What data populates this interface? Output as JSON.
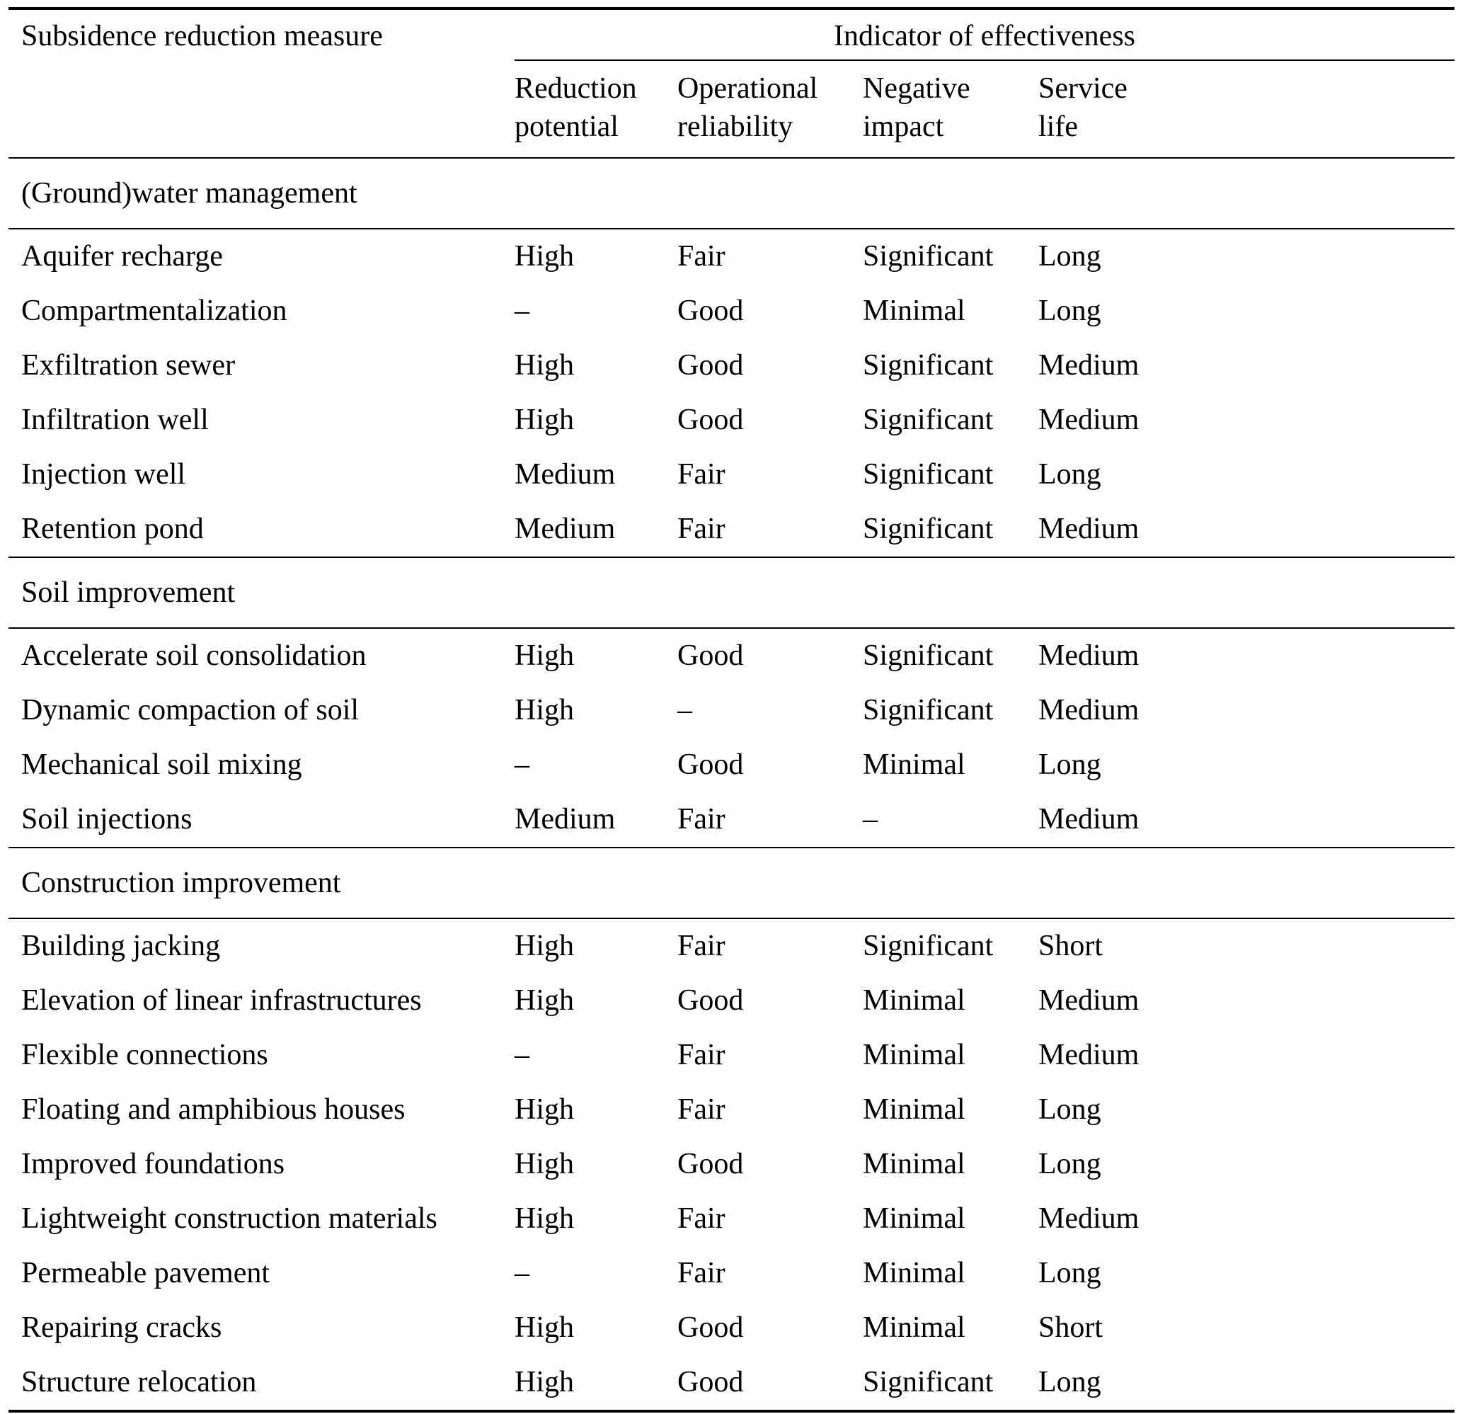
{
  "table": {
    "measure_header": "Subsidence reduction measure",
    "group_header": "Indicator of effectiveness",
    "columns": [
      "Reduction\npotential",
      "Operational\nreliability",
      "Negative\nimpact",
      "Service\nlife"
    ],
    "sections": [
      {
        "title": "(Ground)water management",
        "rows": [
          {
            "measure": "Aquifer recharge",
            "values": [
              "High",
              "Fair",
              "Significant",
              "Long"
            ]
          },
          {
            "measure": "Compartmentalization",
            "values": [
              "–",
              "Good",
              "Minimal",
              "Long"
            ]
          },
          {
            "measure": "Exfiltration sewer",
            "values": [
              "High",
              "Good",
              "Significant",
              "Medium"
            ]
          },
          {
            "measure": "Infiltration well",
            "values": [
              "High",
              "Good",
              "Significant",
              "Medium"
            ]
          },
          {
            "measure": "Injection well",
            "values": [
              "Medium",
              "Fair",
              "Significant",
              "Long"
            ]
          },
          {
            "measure": "Retention pond",
            "values": [
              "Medium",
              "Fair",
              "Significant",
              "Medium"
            ]
          }
        ]
      },
      {
        "title": "Soil improvement",
        "rows": [
          {
            "measure": "Accelerate soil consolidation",
            "values": [
              "High",
              "Good",
              "Significant",
              "Medium"
            ]
          },
          {
            "measure": "Dynamic compaction of soil",
            "values": [
              "High",
              "–",
              "Significant",
              "Medium"
            ]
          },
          {
            "measure": "Mechanical soil mixing",
            "values": [
              "–",
              "Good",
              "Minimal",
              "Long"
            ]
          },
          {
            "measure": "Soil injections",
            "values": [
              "Medium",
              "Fair",
              "–",
              "Medium"
            ]
          }
        ]
      },
      {
        "title": "Construction improvement",
        "rows": [
          {
            "measure": "Building jacking",
            "values": [
              "High",
              "Fair",
              "Significant",
              "Short"
            ]
          },
          {
            "measure": "Elevation of linear infrastructures",
            "values": [
              "High",
              "Good",
              "Minimal",
              "Medium"
            ]
          },
          {
            "measure": "Flexible connections",
            "values": [
              "–",
              "Fair",
              "Minimal",
              "Medium"
            ]
          },
          {
            "measure": "Floating and amphibious houses",
            "values": [
              "High",
              "Fair",
              "Minimal",
              "Long"
            ]
          },
          {
            "measure": "Improved foundations",
            "values": [
              "High",
              "Good",
              "Minimal",
              "Long"
            ]
          },
          {
            "measure": "Lightweight construction materials",
            "values": [
              "High",
              "Fair",
              "Minimal",
              "Medium"
            ]
          },
          {
            "measure": "Permeable pavement",
            "values": [
              "–",
              "Fair",
              "Minimal",
              "Long"
            ]
          },
          {
            "measure": "Repairing cracks",
            "values": [
              "High",
              "Good",
              "Minimal",
              "Short"
            ]
          },
          {
            "measure": "Structure relocation",
            "values": [
              "High",
              "Good",
              "Significant",
              "Long"
            ]
          }
        ]
      }
    ],
    "colors": {
      "text": "#000000",
      "background": "#ffffff",
      "rule": "#000000"
    }
  }
}
